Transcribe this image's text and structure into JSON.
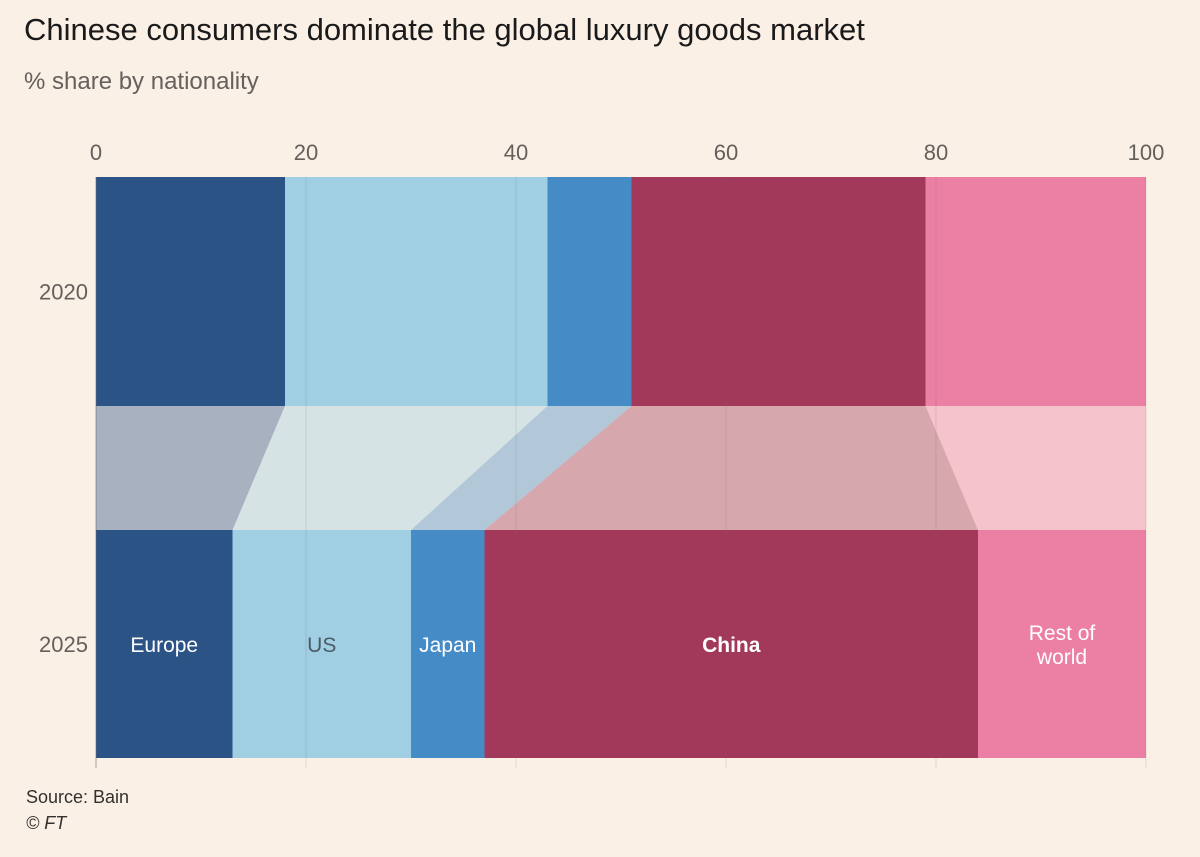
{
  "chart_data": {
    "type": "bar",
    "title": "Chinese consumers dominate the global luxury goods market",
    "subtitle": "% share by nationality",
    "xlim": [
      0,
      100
    ],
    "x_ticks": [
      0,
      20,
      40,
      60,
      80,
      100
    ],
    "categories": [
      "2020",
      "2025"
    ],
    "stacked": true,
    "orientation": "horizontal",
    "series": [
      {
        "name": "Europe",
        "values": [
          18,
          13
        ],
        "color": "#2C5385",
        "label_color": "#FFFFFF",
        "bold": false
      },
      {
        "name": "US",
        "values": [
          25,
          17
        ],
        "color": "#A0CFE4",
        "label_color": "#4D5A66",
        "bold": false
      },
      {
        "name": "Japan",
        "values": [
          8,
          7
        ],
        "color": "#458BC6",
        "label_color": "#FFFFFF",
        "bold": false
      },
      {
        "name": "China",
        "values": [
          28,
          47
        ],
        "color": "#A3395A",
        "label_color": "#FFFFFF",
        "bold": true
      },
      {
        "name": "Rest of world",
        "values": [
          21,
          16
        ],
        "color": "#EC7FA4",
        "label_color": "#FFFFFF",
        "bold": false
      }
    ],
    "label_lines": {
      "Rest of world": [
        "Rest of",
        "world"
      ]
    },
    "gridlines": true,
    "connectors": true
  },
  "source": "Source: Bain",
  "copyright": "© FT"
}
